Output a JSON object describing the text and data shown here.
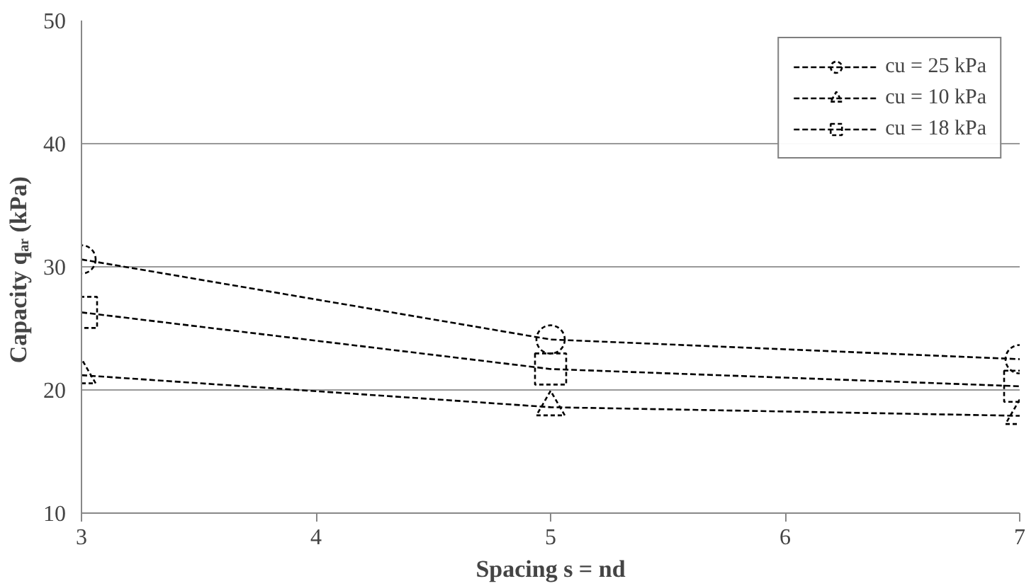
{
  "chart_data": {
    "type": "line",
    "xlabel": "Spacing s = nd",
    "ylabel": "Capacity qₐᵣ  (kPa)",
    "x": [
      3,
      5,
      7
    ],
    "xlim": [
      3,
      7
    ],
    "xticks": [
      3,
      4,
      5,
      6,
      7
    ],
    "ylim": [
      10,
      50
    ],
    "yticks": [
      10,
      20,
      30,
      40,
      50
    ],
    "grid": "y",
    "legend": "top right",
    "line_style": "dashed",
    "series": [
      {
        "name": "cu = 25 kPa",
        "color": "#000000",
        "marker": "circle",
        "values": [
          30.6,
          24.1,
          22.5
        ]
      },
      {
        "name": "cu = 10 kPa",
        "color": "#000000",
        "marker": "triangle",
        "values": [
          21.2,
          18.6,
          17.9
        ]
      },
      {
        "name": "cu = 18 kPa",
        "color": "#000000",
        "marker": "square",
        "values": [
          26.3,
          21.7,
          20.3
        ]
      }
    ]
  }
}
